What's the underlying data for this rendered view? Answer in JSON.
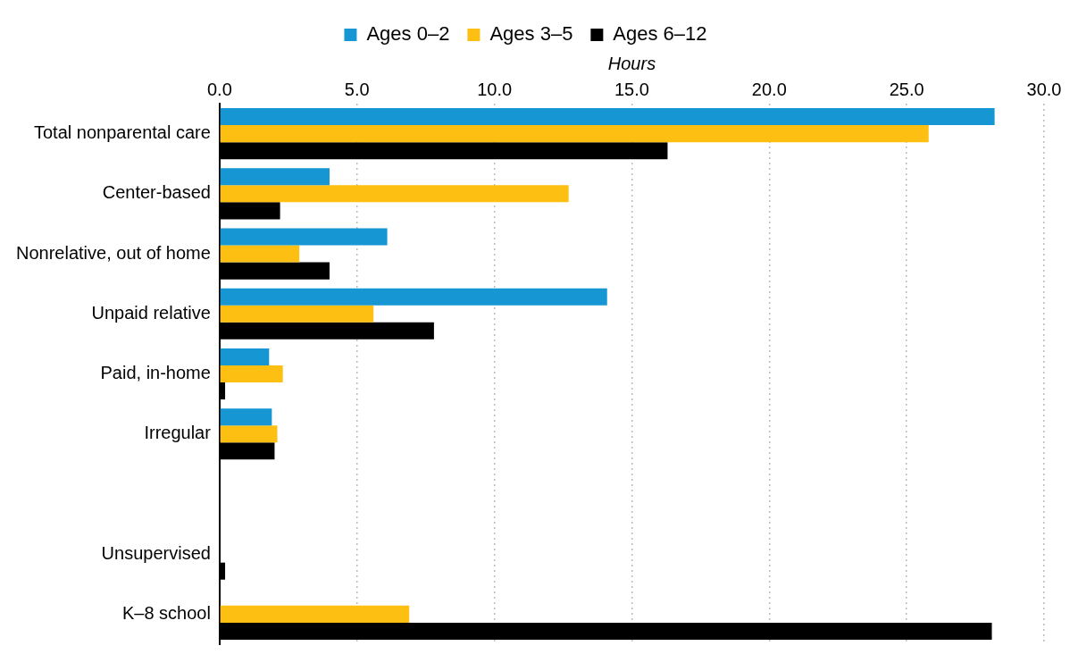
{
  "chart_data": {
    "type": "bar",
    "orientation": "horizontal",
    "xlabel": "Hours",
    "categories": [
      "Total nonparental care",
      "Center-based",
      "Nonrelative, out of home",
      "Unpaid relative",
      "Paid, in-home",
      "Irregular",
      null,
      "Unsupervised",
      "K–8 school"
    ],
    "series": [
      {
        "name": "Ages 0–2",
        "color": "#1696d2",
        "values": [
          28.2,
          4.0,
          6.1,
          14.1,
          1.8,
          1.9,
          null,
          null,
          null
        ]
      },
      {
        "name": "Ages 3–5",
        "color": "#fdbf11",
        "values": [
          25.8,
          12.7,
          2.9,
          5.6,
          2.3,
          2.1,
          null,
          null,
          6.9
        ]
      },
      {
        "name": "Ages 6–12",
        "color": "#000000",
        "values": [
          16.3,
          2.2,
          4.0,
          7.8,
          0.2,
          2.0,
          null,
          0.2,
          28.1
        ]
      }
    ],
    "xlim": [
      0,
      30
    ],
    "xticks": [
      {
        "value": 0,
        "label": "0.0"
      },
      {
        "value": 5,
        "label": "5.0"
      },
      {
        "value": 10,
        "label": "10.0"
      },
      {
        "value": 15,
        "label": "15.0"
      },
      {
        "value": 20,
        "label": "20.0"
      },
      {
        "value": 25,
        "label": "25.0"
      },
      {
        "value": 30,
        "label": "30.0"
      }
    ],
    "grid": "x",
    "legend": "top"
  }
}
